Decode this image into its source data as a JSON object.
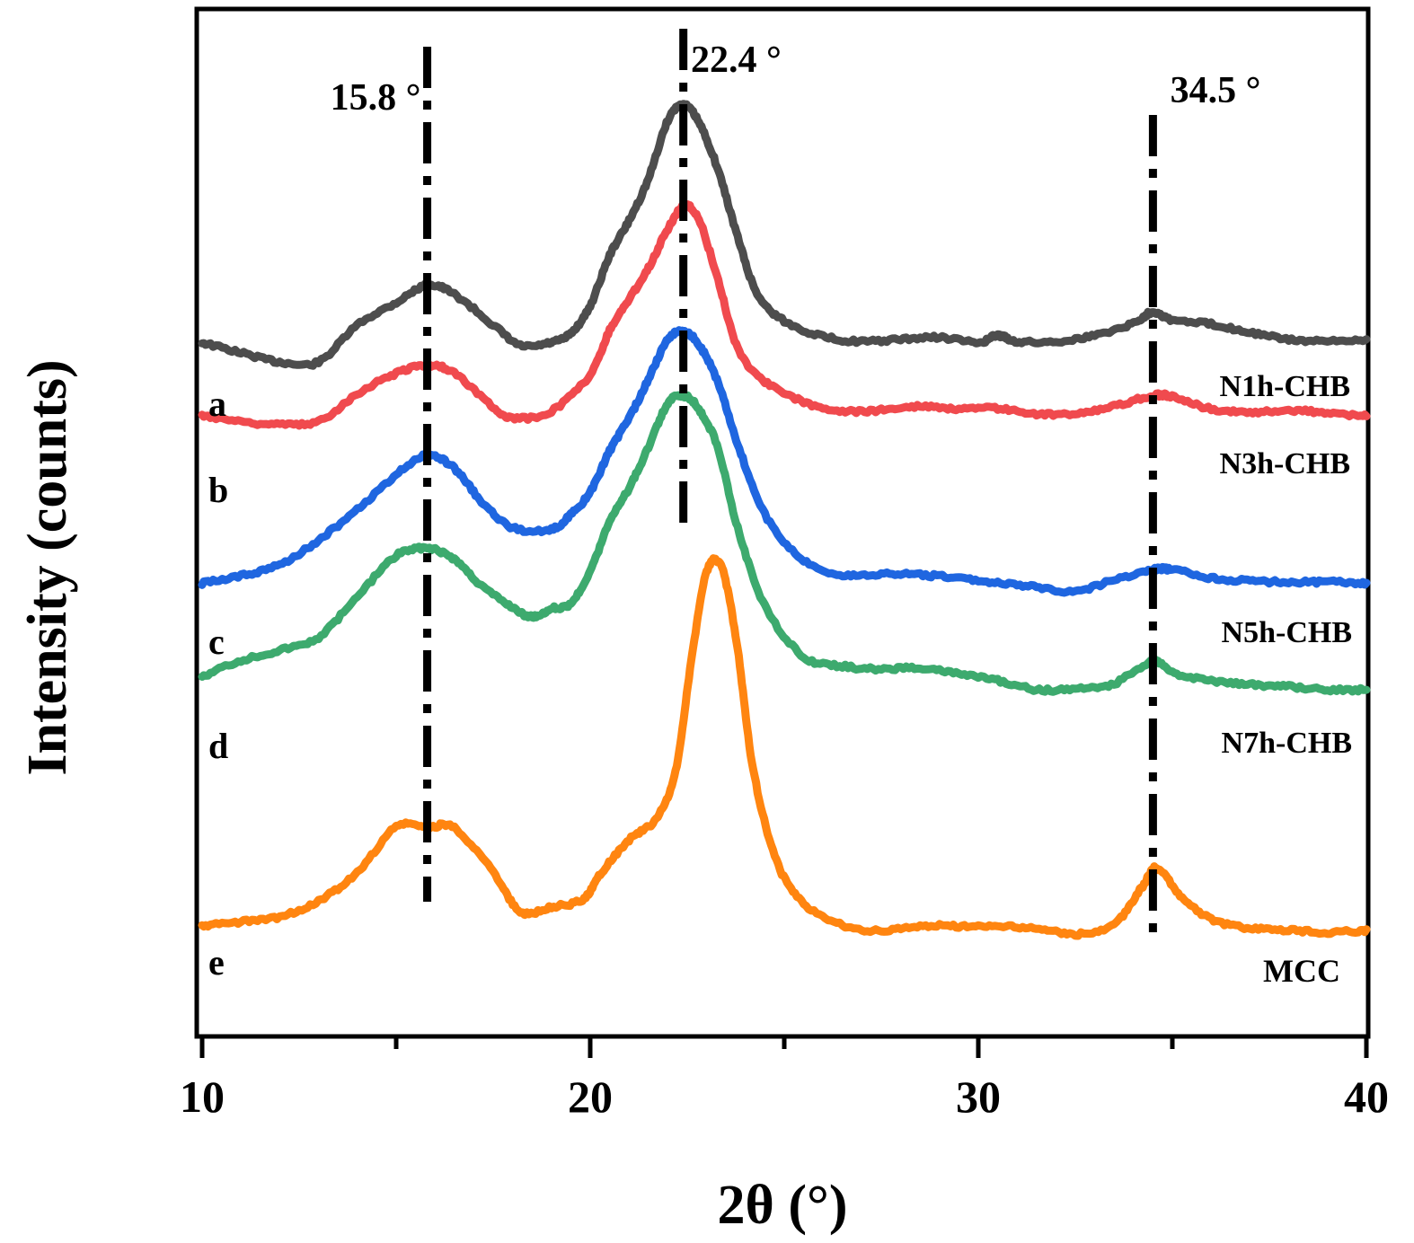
{
  "chart_data": {
    "type": "line",
    "title": "",
    "xlabel": "2θ (°)",
    "ylabel": "Intensity (counts)",
    "xlim": [
      10,
      40
    ],
    "ylim": [
      0,
      100
    ],
    "xticks": [
      10,
      20,
      30,
      40
    ],
    "xtick_labels": [
      "10",
      "20",
      "30",
      "40"
    ],
    "grid": false,
    "reference_lines": [
      {
        "x": 15.8,
        "label": "15.8 °"
      },
      {
        "x": 22.4,
        "label": "22.4 °"
      },
      {
        "x": 34.5,
        "label": "34.5 °"
      }
    ],
    "series": [
      {
        "name": "N1h-CHB",
        "letter": "a",
        "color": "#4d4d4d",
        "points": [
          [
            10,
            67.6
          ],
          [
            11,
            66.6
          ],
          [
            12,
            65.7
          ],
          [
            13,
            65.7
          ],
          [
            14,
            69.3
          ],
          [
            15,
            71.5
          ],
          [
            15.8,
            73.2
          ],
          [
            16.5,
            72.3
          ],
          [
            17.5,
            69.3
          ],
          [
            18.2,
            67.3
          ],
          [
            19,
            67.6
          ],
          [
            19.5,
            68.5
          ],
          [
            20,
            71.2
          ],
          [
            20.5,
            76.1
          ],
          [
            21,
            79.5
          ],
          [
            21.5,
            83.6
          ],
          [
            22,
            89.3
          ],
          [
            22.4,
            90.8
          ],
          [
            22.8,
            89.1
          ],
          [
            23.3,
            84.4
          ],
          [
            23.8,
            77.9
          ],
          [
            24.3,
            72.4
          ],
          [
            25,
            69.7
          ],
          [
            26,
            68.2
          ],
          [
            27,
            67.7
          ],
          [
            28,
            67.9
          ],
          [
            29,
            68.1
          ],
          [
            30,
            67.6
          ],
          [
            30.5,
            68.3
          ],
          [
            31,
            67.7
          ],
          [
            32,
            67.7
          ],
          [
            33,
            68.3
          ],
          [
            34,
            69.5
          ],
          [
            34.5,
            70.6
          ],
          [
            35,
            69.8
          ],
          [
            36,
            69.4
          ],
          [
            37,
            68.6
          ],
          [
            38,
            67.9
          ],
          [
            39,
            67.7
          ],
          [
            40,
            67.9
          ]
        ]
      },
      {
        "name": "N3h-CHB",
        "letter": "b",
        "color": "#f04a4e",
        "points": [
          [
            10,
            60.5
          ],
          [
            11,
            59.9
          ],
          [
            12,
            59.6
          ],
          [
            13,
            59.9
          ],
          [
            14,
            62.6
          ],
          [
            15,
            64.6
          ],
          [
            15.8,
            65.4
          ],
          [
            16.5,
            64.6
          ],
          [
            17.5,
            61.3
          ],
          [
            18,
            60.2
          ],
          [
            19,
            60.9
          ],
          [
            20,
            64.5
          ],
          [
            20.5,
            68.8
          ],
          [
            21,
            71.8
          ],
          [
            21.5,
            74.9
          ],
          [
            22,
            78.7
          ],
          [
            22.4,
            80.9
          ],
          [
            22.8,
            79.6
          ],
          [
            23.3,
            73.6
          ],
          [
            23.8,
            67.1
          ],
          [
            24.5,
            63.8
          ],
          [
            25.5,
            61.8
          ],
          [
            26.5,
            60.9
          ],
          [
            27.5,
            61.0
          ],
          [
            28.5,
            61.4
          ],
          [
            29.5,
            61.1
          ],
          [
            30.5,
            61.2
          ],
          [
            31.5,
            60.6
          ],
          [
            32.5,
            60.7
          ],
          [
            33.5,
            61.4
          ],
          [
            34.5,
            62.4
          ],
          [
            35,
            62.3
          ],
          [
            36,
            61.1
          ],
          [
            37,
            60.8
          ],
          [
            38,
            61.0
          ],
          [
            39,
            60.7
          ],
          [
            40,
            60.4
          ]
        ]
      },
      {
        "name": "N5h-CHB",
        "letter": "c",
        "color": "#1f66e0",
        "points": [
          [
            10,
            44.1
          ],
          [
            11,
            44.8
          ],
          [
            12,
            45.9
          ],
          [
            13,
            48.3
          ],
          [
            14,
            51.3
          ],
          [
            15,
            54.7
          ],
          [
            15.8,
            56.6
          ],
          [
            16.5,
            55.3
          ],
          [
            17.2,
            52.1
          ],
          [
            18,
            49.5
          ],
          [
            19,
            49.4
          ],
          [
            19.5,
            50.8
          ],
          [
            20,
            53.0
          ],
          [
            20.5,
            57.0
          ],
          [
            21,
            60.2
          ],
          [
            21.5,
            64.0
          ],
          [
            22,
            67.9
          ],
          [
            22.4,
            68.6
          ],
          [
            22.8,
            67.4
          ],
          [
            23.3,
            63.6
          ],
          [
            23.8,
            57.7
          ],
          [
            24.5,
            50.8
          ],
          [
            25.5,
            46.3
          ],
          [
            26.5,
            44.9
          ],
          [
            27.5,
            45.0
          ],
          [
            28.5,
            44.9
          ],
          [
            29.5,
            44.6
          ],
          [
            30.5,
            44.1
          ],
          [
            31.5,
            43.7
          ],
          [
            32.5,
            43.3
          ],
          [
            33.5,
            44.4
          ],
          [
            34.5,
            45.4
          ],
          [
            35,
            45.4
          ],
          [
            36,
            44.6
          ],
          [
            37,
            44.3
          ],
          [
            38,
            44.2
          ],
          [
            39,
            44.2
          ],
          [
            40,
            44.1
          ]
        ]
      },
      {
        "name": "N7h-CHB",
        "letter": "d",
        "color": "#3daa6e",
        "points": [
          [
            10,
            35.0
          ],
          [
            11,
            36.5
          ],
          [
            12,
            37.5
          ],
          [
            13,
            38.8
          ],
          [
            14,
            42.8
          ],
          [
            15,
            46.8
          ],
          [
            15.8,
            47.5
          ],
          [
            16.5,
            46.4
          ],
          [
            17.2,
            43.8
          ],
          [
            18,
            41.7
          ],
          [
            18.5,
            40.8
          ],
          [
            19,
            41.6
          ],
          [
            19.5,
            42.1
          ],
          [
            20,
            45.3
          ],
          [
            20.5,
            50.1
          ],
          [
            21,
            53.4
          ],
          [
            21.5,
            57.4
          ],
          [
            22,
            61.7
          ],
          [
            22.4,
            62.4
          ],
          [
            22.8,
            61.1
          ],
          [
            23.3,
            57.2
          ],
          [
            23.8,
            49.5
          ],
          [
            24.5,
            41.9
          ],
          [
            25.5,
            36.9
          ],
          [
            26.5,
            36.0
          ],
          [
            27.5,
            35.7
          ],
          [
            28.5,
            35.8
          ],
          [
            29.5,
            35.2
          ],
          [
            30.5,
            34.6
          ],
          [
            31.5,
            33.7
          ],
          [
            32.5,
            33.8
          ],
          [
            33.5,
            34.3
          ],
          [
            34.5,
            36.5
          ],
          [
            35,
            35.3
          ],
          [
            36,
            34.6
          ],
          [
            37,
            34.2
          ],
          [
            38,
            34.0
          ],
          [
            39,
            33.7
          ],
          [
            40,
            33.7
          ]
        ]
      },
      {
        "name": "MCC",
        "letter": "e",
        "color": "#ff8510",
        "points": [
          [
            10,
            10.6
          ],
          [
            11,
            11.0
          ],
          [
            12,
            11.5
          ],
          [
            13,
            13.1
          ],
          [
            14,
            15.8
          ],
          [
            15,
            20.3
          ],
          [
            15.8,
            20.2
          ],
          [
            16.5,
            20.2
          ],
          [
            17.5,
            15.9
          ],
          [
            18.2,
            12.0
          ],
          [
            19,
            12.5
          ],
          [
            19.8,
            13.2
          ],
          [
            20.3,
            15.9
          ],
          [
            21,
            19.0
          ],
          [
            21.7,
            21.1
          ],
          [
            22.2,
            25.7
          ],
          [
            22.6,
            36.4
          ],
          [
            23,
            45.2
          ],
          [
            23.4,
            45.5
          ],
          [
            23.8,
            37.6
          ],
          [
            24.2,
            25.9
          ],
          [
            24.8,
            17.0
          ],
          [
            25.5,
            12.8
          ],
          [
            26.5,
            10.7
          ],
          [
            27.5,
            10.1
          ],
          [
            28.5,
            10.6
          ],
          [
            29.5,
            10.6
          ],
          [
            30.5,
            10.6
          ],
          [
            31.5,
            10.4
          ],
          [
            32.5,
            9.8
          ],
          [
            33.5,
            10.8
          ],
          [
            34.2,
            14.3
          ],
          [
            34.6,
            16.3
          ],
          [
            35.2,
            13.6
          ],
          [
            36,
            11.3
          ],
          [
            37,
            10.4
          ],
          [
            38,
            10.2
          ],
          [
            39,
            10.0
          ],
          [
            40,
            10.2
          ]
        ]
      }
    ]
  }
}
